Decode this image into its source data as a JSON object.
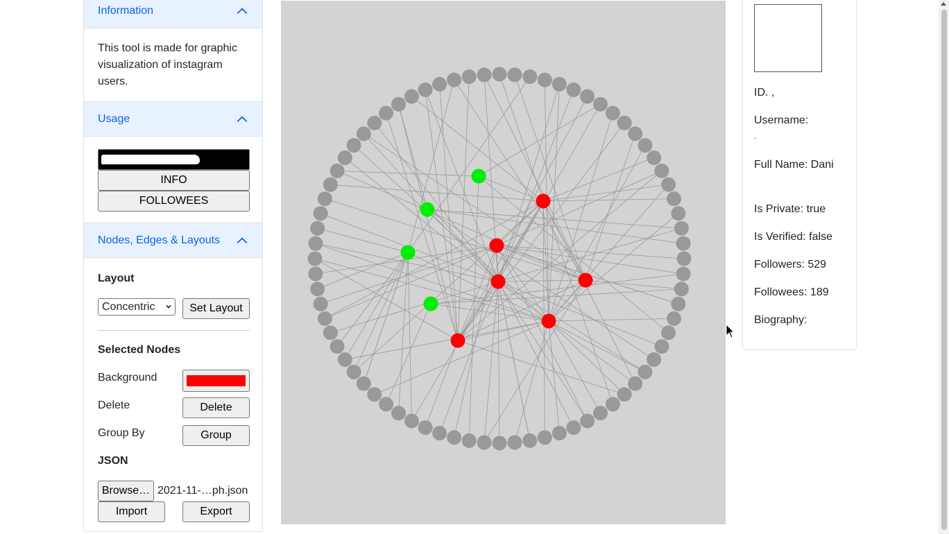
{
  "sidebar": {
    "information": {
      "title": "Information",
      "text": "This tool is made for graphic visualization of instagram users."
    },
    "usage": {
      "title": "Usage",
      "buttons": {
        "info": "INFO",
        "followees": "FOLLOWEES"
      }
    },
    "nodes": {
      "title": "Nodes, Edges & Layouts",
      "layout_heading": "Layout",
      "layout_select_value": "Concentric",
      "set_layout_button": "Set Layout",
      "selected_nodes_heading": "Selected Nodes",
      "background_label": "Background",
      "background_color": "#ff0000",
      "delete_label": "Delete",
      "delete_button": "Delete",
      "group_label": "Group By",
      "group_button": "Group",
      "json_heading": "JSON",
      "browse_button": "Browse…",
      "file_name": "2021-11-…ph.json",
      "import_button": "Import",
      "export_button": "Export"
    }
  },
  "graph": {
    "background": "#d3d3d3",
    "node_colors": {
      "outer": "#999999",
      "green": "#00ee00",
      "red": "#ff0000",
      "edge": "#9a9a9a"
    },
    "outer_node_count": 76,
    "green_node_count": 4,
    "red_node_count": 6
  },
  "details": {
    "id": "ID. ,",
    "username_label": "Username:",
    "username_value": ".",
    "full_name": "Full Name: Dani",
    "is_private": "Is Private: true",
    "is_verified": "Is Verified: false",
    "followers": "Followers: 529",
    "followees": "Followees: 189",
    "biography": "Biography:"
  }
}
